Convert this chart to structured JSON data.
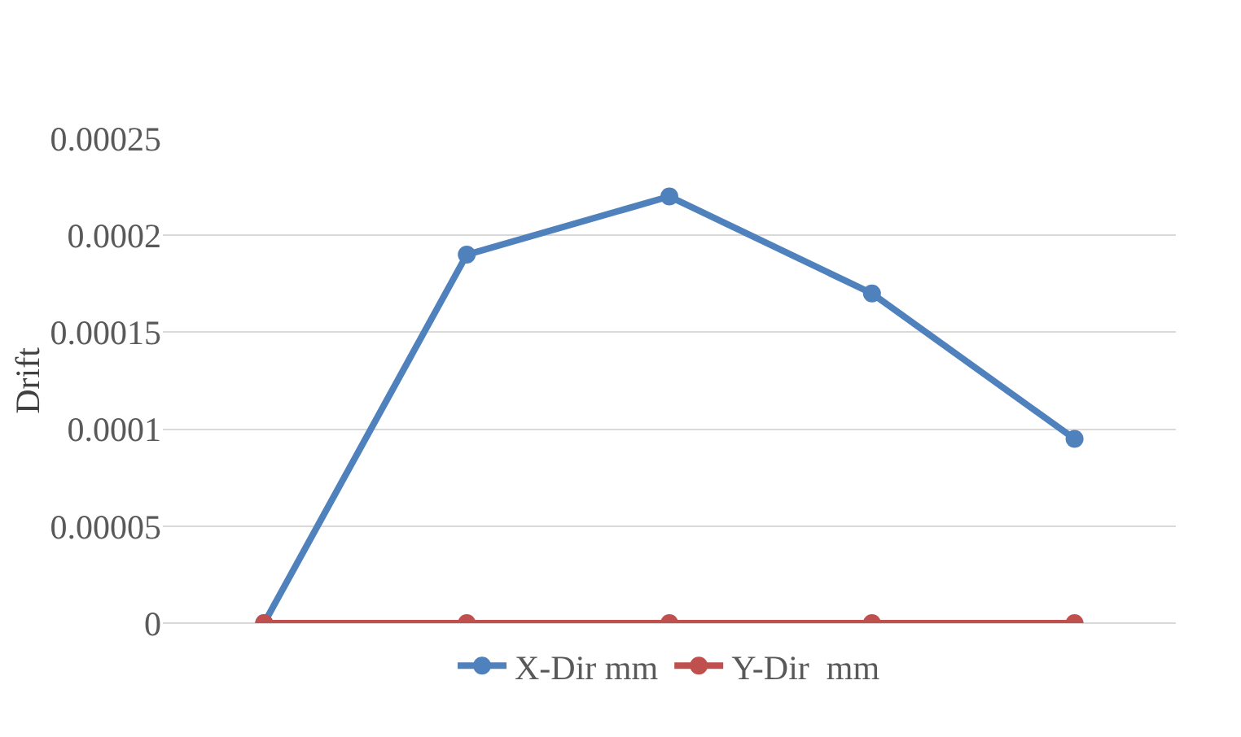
{
  "chart_data": {
    "type": "line",
    "ylabel": "Drift",
    "categories": [
      null,
      null,
      null,
      null,
      null
    ],
    "series": [
      {
        "name": "X-Dir mm",
        "color": "#4f81bd",
        "values": [
          0,
          0.00019,
          0.00022,
          0.00017,
          9.5e-05
        ]
      },
      {
        "name": "Y-Dir  mm",
        "color": "#c0504d",
        "values": [
          0,
          0,
          0,
          0,
          0
        ]
      }
    ],
    "ylim": [
      0,
      0.00025
    ],
    "yticks": [
      0,
      {
        "value": 5e-05,
        "label": "0.00005"
      },
      0.0001,
      0.00015,
      0.0002,
      0.00025
    ],
    "grid": "y",
    "legend": "bottom",
    "marker": "circle",
    "line_style": "solid"
  }
}
